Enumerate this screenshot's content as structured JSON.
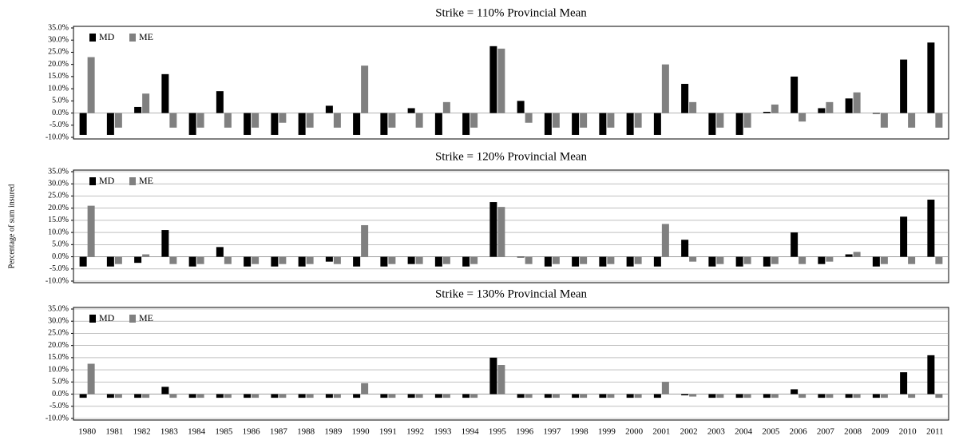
{
  "chart_data": [
    {
      "type": "bar",
      "title": "Strike = 110% Provincial Mean",
      "grid": false,
      "legend": "upper left",
      "ylim": [
        -10,
        35
      ],
      "yticks": [
        {
          "value": -10,
          "label": "-10.0%"
        },
        {
          "value": -5,
          "label": "-5.0%"
        },
        {
          "value": 0,
          "label": "0.0%"
        },
        {
          "value": 5,
          "label": "5.0%"
        },
        {
          "value": 10,
          "label": "10.0%"
        },
        {
          "value": 15,
          "label": "15.0%"
        },
        {
          "value": 20,
          "label": "20.0%"
        },
        {
          "value": 25,
          "label": "25.0%"
        },
        {
          "value": 30,
          "label": "30.0%"
        },
        {
          "value": 35,
          "label": "35.0%"
        }
      ],
      "series": [
        {
          "name": "MD",
          "color": "#000000",
          "values": [
            -9,
            -9,
            2.5,
            16,
            -9,
            9,
            -9,
            -9,
            -9,
            3,
            -9,
            -9,
            2,
            -9,
            -9,
            27.5,
            5,
            -9,
            -9,
            -9,
            -9,
            -9,
            12,
            -9,
            -9,
            0.5,
            15,
            2,
            6,
            -0.3,
            22,
            29
          ]
        },
        {
          "name": "ME",
          "color": "#808080",
          "values": [
            23,
            -6,
            8,
            -6,
            -6,
            -6,
            -6,
            -4,
            -6,
            -6,
            19.5,
            -6,
            -6,
            4.5,
            -6,
            26.5,
            -4,
            -6,
            -6,
            -6,
            -6,
            20,
            4.5,
            -6,
            -6,
            3.5,
            -3.5,
            4.5,
            8.5,
            -6,
            -6,
            -6
          ]
        }
      ]
    },
    {
      "type": "bar",
      "title": "Strike = 120% Provincial Mean",
      "ylabel": "Percentage of sum insured",
      "grid": true,
      "legend": "upper left",
      "ylim": [
        -10,
        35
      ],
      "yticks": [
        {
          "value": -10,
          "label": "-10.0%"
        },
        {
          "value": -5,
          "label": "-5.0%"
        },
        {
          "value": 0,
          "label": "0.0%"
        },
        {
          "value": 5,
          "label": "5.0%"
        },
        {
          "value": 10,
          "label": "10.0%"
        },
        {
          "value": 15,
          "label": "15.0%"
        },
        {
          "value": 20,
          "label": "20.0%"
        },
        {
          "value": 25,
          "label": "25.0%"
        },
        {
          "value": 30,
          "label": "30.0%"
        },
        {
          "value": 35,
          "label": "35.0%"
        }
      ],
      "series": [
        {
          "name": "MD",
          "color": "#000000",
          "values": [
            -4,
            -4,
            -2.5,
            11,
            -4,
            4,
            -4,
            -4,
            -4,
            -2,
            -4,
            -4,
            -3,
            -4,
            -4,
            22.5,
            -0.3,
            -4,
            -4,
            -4,
            -4,
            -4,
            7,
            -4,
            -4,
            -4,
            10,
            -3,
            1,
            -4,
            16.5,
            23.5
          ]
        },
        {
          "name": "ME",
          "color": "#808080",
          "values": [
            21,
            -3,
            1,
            -3,
            -3,
            -3,
            -3,
            -3,
            -3,
            -3,
            13,
            -3,
            -3,
            -3,
            -3,
            20.5,
            -3,
            -3,
            -3,
            -3,
            -3,
            13.5,
            -2,
            -3,
            -3,
            -3,
            -3,
            -2,
            2,
            -3,
            -3,
            -3
          ]
        }
      ]
    },
    {
      "type": "bar",
      "title": "Strike = 130% Provincial Mean",
      "grid": true,
      "legend": "upper left",
      "categories": [
        "1980",
        "1981",
        "1982",
        "1983",
        "1984",
        "1985",
        "1986",
        "1987",
        "1988",
        "1989",
        "1990",
        "1991",
        "1992",
        "1993",
        "1994",
        "1995",
        "1996",
        "1997",
        "1998",
        "1999",
        "2000",
        "2001",
        "2002",
        "2003",
        "2004",
        "2005",
        "2006",
        "2007",
        "2008",
        "2009",
        "2010",
        "2011"
      ],
      "ylim": [
        -10,
        35
      ],
      "yticks": [
        {
          "value": -10,
          "label": "-10.0%"
        },
        {
          "value": -5,
          "label": "-5.0%"
        },
        {
          "value": 0,
          "label": "0.0%"
        },
        {
          "value": 5,
          "label": "5.0%"
        },
        {
          "value": 10,
          "label": "10.0%"
        },
        {
          "value": 15,
          "label": "15.0%"
        },
        {
          "value": 20,
          "label": "20.0%"
        },
        {
          "value": 25,
          "label": "25.0%"
        },
        {
          "value": 30,
          "label": "30.0%"
        },
        {
          "value": 35,
          "label": "35.0%"
        }
      ],
      "series": [
        {
          "name": "MD",
          "color": "#000000",
          "values": [
            -1.5,
            -1.5,
            -1.5,
            3,
            -1.5,
            -1.5,
            -1.5,
            -1.5,
            -1.5,
            -1.5,
            -1.5,
            -1.5,
            -1.5,
            -1.5,
            -1.5,
            15,
            -1.5,
            -1.5,
            -1.5,
            -1.5,
            -1.5,
            -1.5,
            -0.5,
            -1.5,
            -1.5,
            -1.5,
            2,
            -1.5,
            -1.5,
            -1.5,
            9,
            16
          ]
        },
        {
          "name": "ME",
          "color": "#808080",
          "values": [
            12.5,
            -1.5,
            -1.5,
            -1.5,
            -1.5,
            -1.5,
            -1.5,
            -1.5,
            -1.5,
            -1.5,
            4.5,
            -1.5,
            -1.5,
            -1.5,
            -1.5,
            12,
            -1.5,
            -1.5,
            -1.5,
            -1.5,
            -1.5,
            5,
            -1,
            -1.5,
            -1.5,
            -1.5,
            -1.5,
            -1.5,
            -1.5,
            -1.5,
            -1.5,
            -1.5
          ]
        }
      ]
    }
  ]
}
